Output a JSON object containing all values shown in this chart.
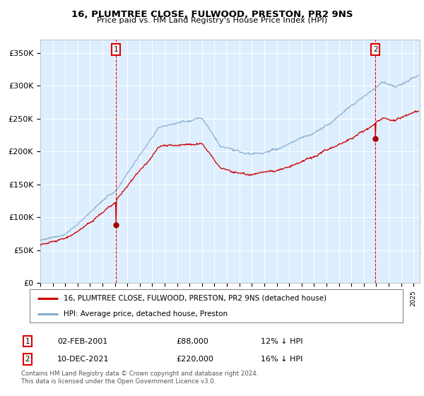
{
  "title": "16, PLUMTREE CLOSE, FULWOOD, PRESTON, PR2 9NS",
  "subtitle": "Price paid vs. HM Land Registry's House Price Index (HPI)",
  "ylabel_ticks": [
    "£0",
    "£50K",
    "£100K",
    "£150K",
    "£200K",
    "£250K",
    "£300K",
    "£350K"
  ],
  "ytick_vals": [
    0,
    50000,
    100000,
    150000,
    200000,
    250000,
    300000,
    350000
  ],
  "ylim": [
    0,
    370000
  ],
  "xlim_start": 1995.0,
  "xlim_end": 2025.5,
  "sale1_x": 2001.09,
  "sale1_y": 88000,
  "sale2_x": 2021.93,
  "sale2_y": 220000,
  "legend_line1": "16, PLUMTREE CLOSE, FULWOOD, PRESTON, PR2 9NS (detached house)",
  "legend_line2": "HPI: Average price, detached house, Preston",
  "annotation1_label": "1",
  "annotation1_date": "02-FEB-2001",
  "annotation1_price": "£88,000",
  "annotation1_hpi": "12% ↓ HPI",
  "annotation2_label": "2",
  "annotation2_date": "10-DEC-2021",
  "annotation2_price": "£220,000",
  "annotation2_hpi": "16% ↓ HPI",
  "footer1": "Contains HM Land Registry data © Crown copyright and database right 2024.",
  "footer2": "This data is licensed under the Open Government Licence v3.0.",
  "line_red": "#cc0000",
  "line_blue": "#88aacc",
  "bg_plot": "#ddeeff",
  "grid_color": "#ffffff"
}
